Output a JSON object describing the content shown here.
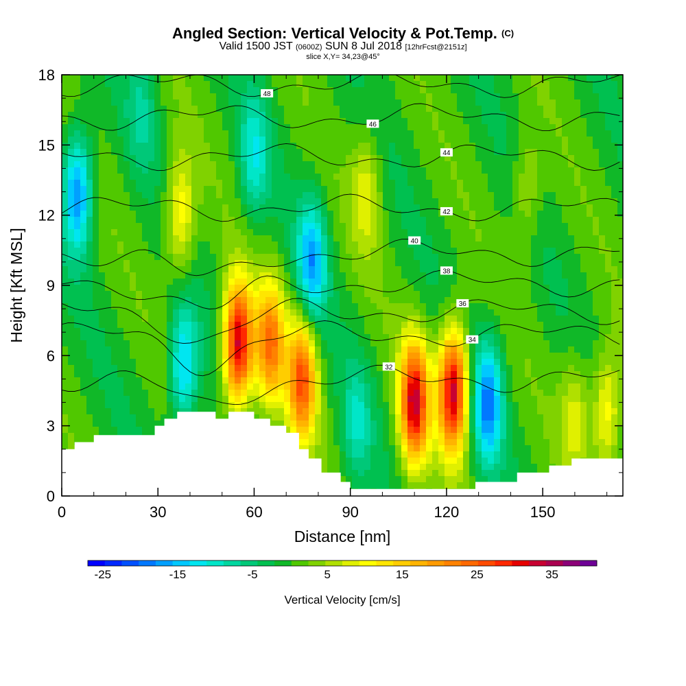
{
  "header": {
    "title": "Angled Section: Vertical Velocity & Pot.Temp.",
    "title_mark": "(C)",
    "subtitle_a": "Valid 1500 JST",
    "subtitle_b": "(0600Z)",
    "subtitle_c": "SUN 8 Jul 2018",
    "subtitle_d": "[12hrFcst@2151z]",
    "slice": "slice X,Y= 34,23@45°"
  },
  "chart_data": {
    "type": "heatmap",
    "xlabel": "Distance [nm]",
    "ylabel": "Height [Kft MSL]",
    "xlim": [
      0,
      175
    ],
    "ylim": [
      0,
      18
    ],
    "x_ticks": [
      "0",
      "30",
      "60",
      "90",
      "120",
      "150"
    ],
    "y_ticks": [
      "0",
      "3",
      "6",
      "9",
      "12",
      "15",
      "18"
    ],
    "colorbar": {
      "title": "Vertical Velocity [cm/s]",
      "labels": [
        "-25",
        "-15",
        "-5",
        "5",
        "15",
        "25",
        "35"
      ],
      "min": -27,
      "max": 41,
      "colors": [
        "#0000ff",
        "#0028ff",
        "#0050ff",
        "#0078ff",
        "#00a0ff",
        "#00c8ff",
        "#00e6f0",
        "#00e6c8",
        "#00d7a0",
        "#00c878",
        "#00c050",
        "#10b828",
        "#50c800",
        "#80d200",
        "#b0e000",
        "#e0f000",
        "#ffff00",
        "#ffe600",
        "#ffcd00",
        "#ffb400",
        "#ff9b00",
        "#ff8200",
        "#ff6900",
        "#ff4b00",
        "#ff2800",
        "#e60000",
        "#c80032",
        "#aa0050",
        "#8c0078",
        "#6e0096"
      ]
    },
    "velocity_features": [
      {
        "x": 5,
        "z": 13.0,
        "w": -18
      },
      {
        "x": 25,
        "z": 16.5,
        "w": -6
      },
      {
        "x": 37,
        "z": 12.0,
        "w": 12
      },
      {
        "x": 38,
        "z": 5.5,
        "w": -15
      },
      {
        "x": 55,
        "z": 6.5,
        "w": 33
      },
      {
        "x": 65,
        "z": 6.5,
        "w": 22
      },
      {
        "x": 60,
        "z": 14.5,
        "w": -10
      },
      {
        "x": 75,
        "z": 5.0,
        "w": 25
      },
      {
        "x": 78,
        "z": 10.0,
        "w": -16
      },
      {
        "x": 92,
        "z": 3.0,
        "w": -8
      },
      {
        "x": 95,
        "z": 13.0,
        "w": 8
      },
      {
        "x": 110,
        "z": 4.0,
        "w": 32
      },
      {
        "x": 122,
        "z": 4.5,
        "w": 34
      },
      {
        "x": 133,
        "z": 4.0,
        "w": -18
      },
      {
        "x": 145,
        "z": 13.0,
        "w": 6
      },
      {
        "x": 160,
        "z": 3.5,
        "w": 8
      },
      {
        "x": 170,
        "z": 3.5,
        "w": 12
      }
    ],
    "terrain": [
      [
        0,
        2
      ],
      [
        4,
        2
      ],
      [
        4,
        2.3
      ],
      [
        10,
        2.3
      ],
      [
        10,
        2.6
      ],
      [
        29,
        2.6
      ],
      [
        29,
        3.0
      ],
      [
        32,
        3.0
      ],
      [
        32,
        3.3
      ],
      [
        36,
        3.3
      ],
      [
        36,
        3.6
      ],
      [
        48,
        3.6
      ],
      [
        48,
        3.3
      ],
      [
        52,
        3.3
      ],
      [
        52,
        3.6
      ],
      [
        60,
        3.6
      ],
      [
        60,
        3.3
      ],
      [
        65,
        3.3
      ],
      [
        65,
        3.0
      ],
      [
        70,
        3.0
      ],
      [
        70,
        2.7
      ],
      [
        74,
        2.7
      ],
      [
        74,
        2.0
      ],
      [
        77,
        2.0
      ],
      [
        77,
        1.6
      ],
      [
        81,
        1.6
      ],
      [
        81,
        1.0
      ],
      [
        87,
        1.0
      ],
      [
        87,
        0.6
      ],
      [
        90,
        0.6
      ],
      [
        90,
        0.3
      ],
      [
        129,
        0.3
      ],
      [
        129,
        0.6
      ],
      [
        142,
        0.6
      ],
      [
        142,
        1.0
      ],
      [
        152,
        1.0
      ],
      [
        152,
        1.3
      ],
      [
        159,
        1.3
      ],
      [
        159,
        1.6
      ],
      [
        175,
        1.6
      ]
    ],
    "theta_contours": [
      {
        "label": "48",
        "z0": 17.6,
        "label_x": 64
      },
      {
        "label": "46",
        "z0": 16.2,
        "label_x": 97
      },
      {
        "label": "44",
        "z0": 14.5,
        "label_x": 120
      },
      {
        "label": "42",
        "z0": 12.3,
        "label_x": 120
      },
      {
        "label": "40",
        "z0": 10.4,
        "label_x": 110
      },
      {
        "label": "38",
        "z0": 9.1,
        "label_x": 120
      },
      {
        "label": "36",
        "z0": 7.9,
        "label_x": 125
      },
      {
        "label": "34",
        "z0": 6.9,
        "label_x": 128
      },
      {
        "label": "32",
        "z0": 5.0,
        "label_x": 102
      }
    ]
  }
}
